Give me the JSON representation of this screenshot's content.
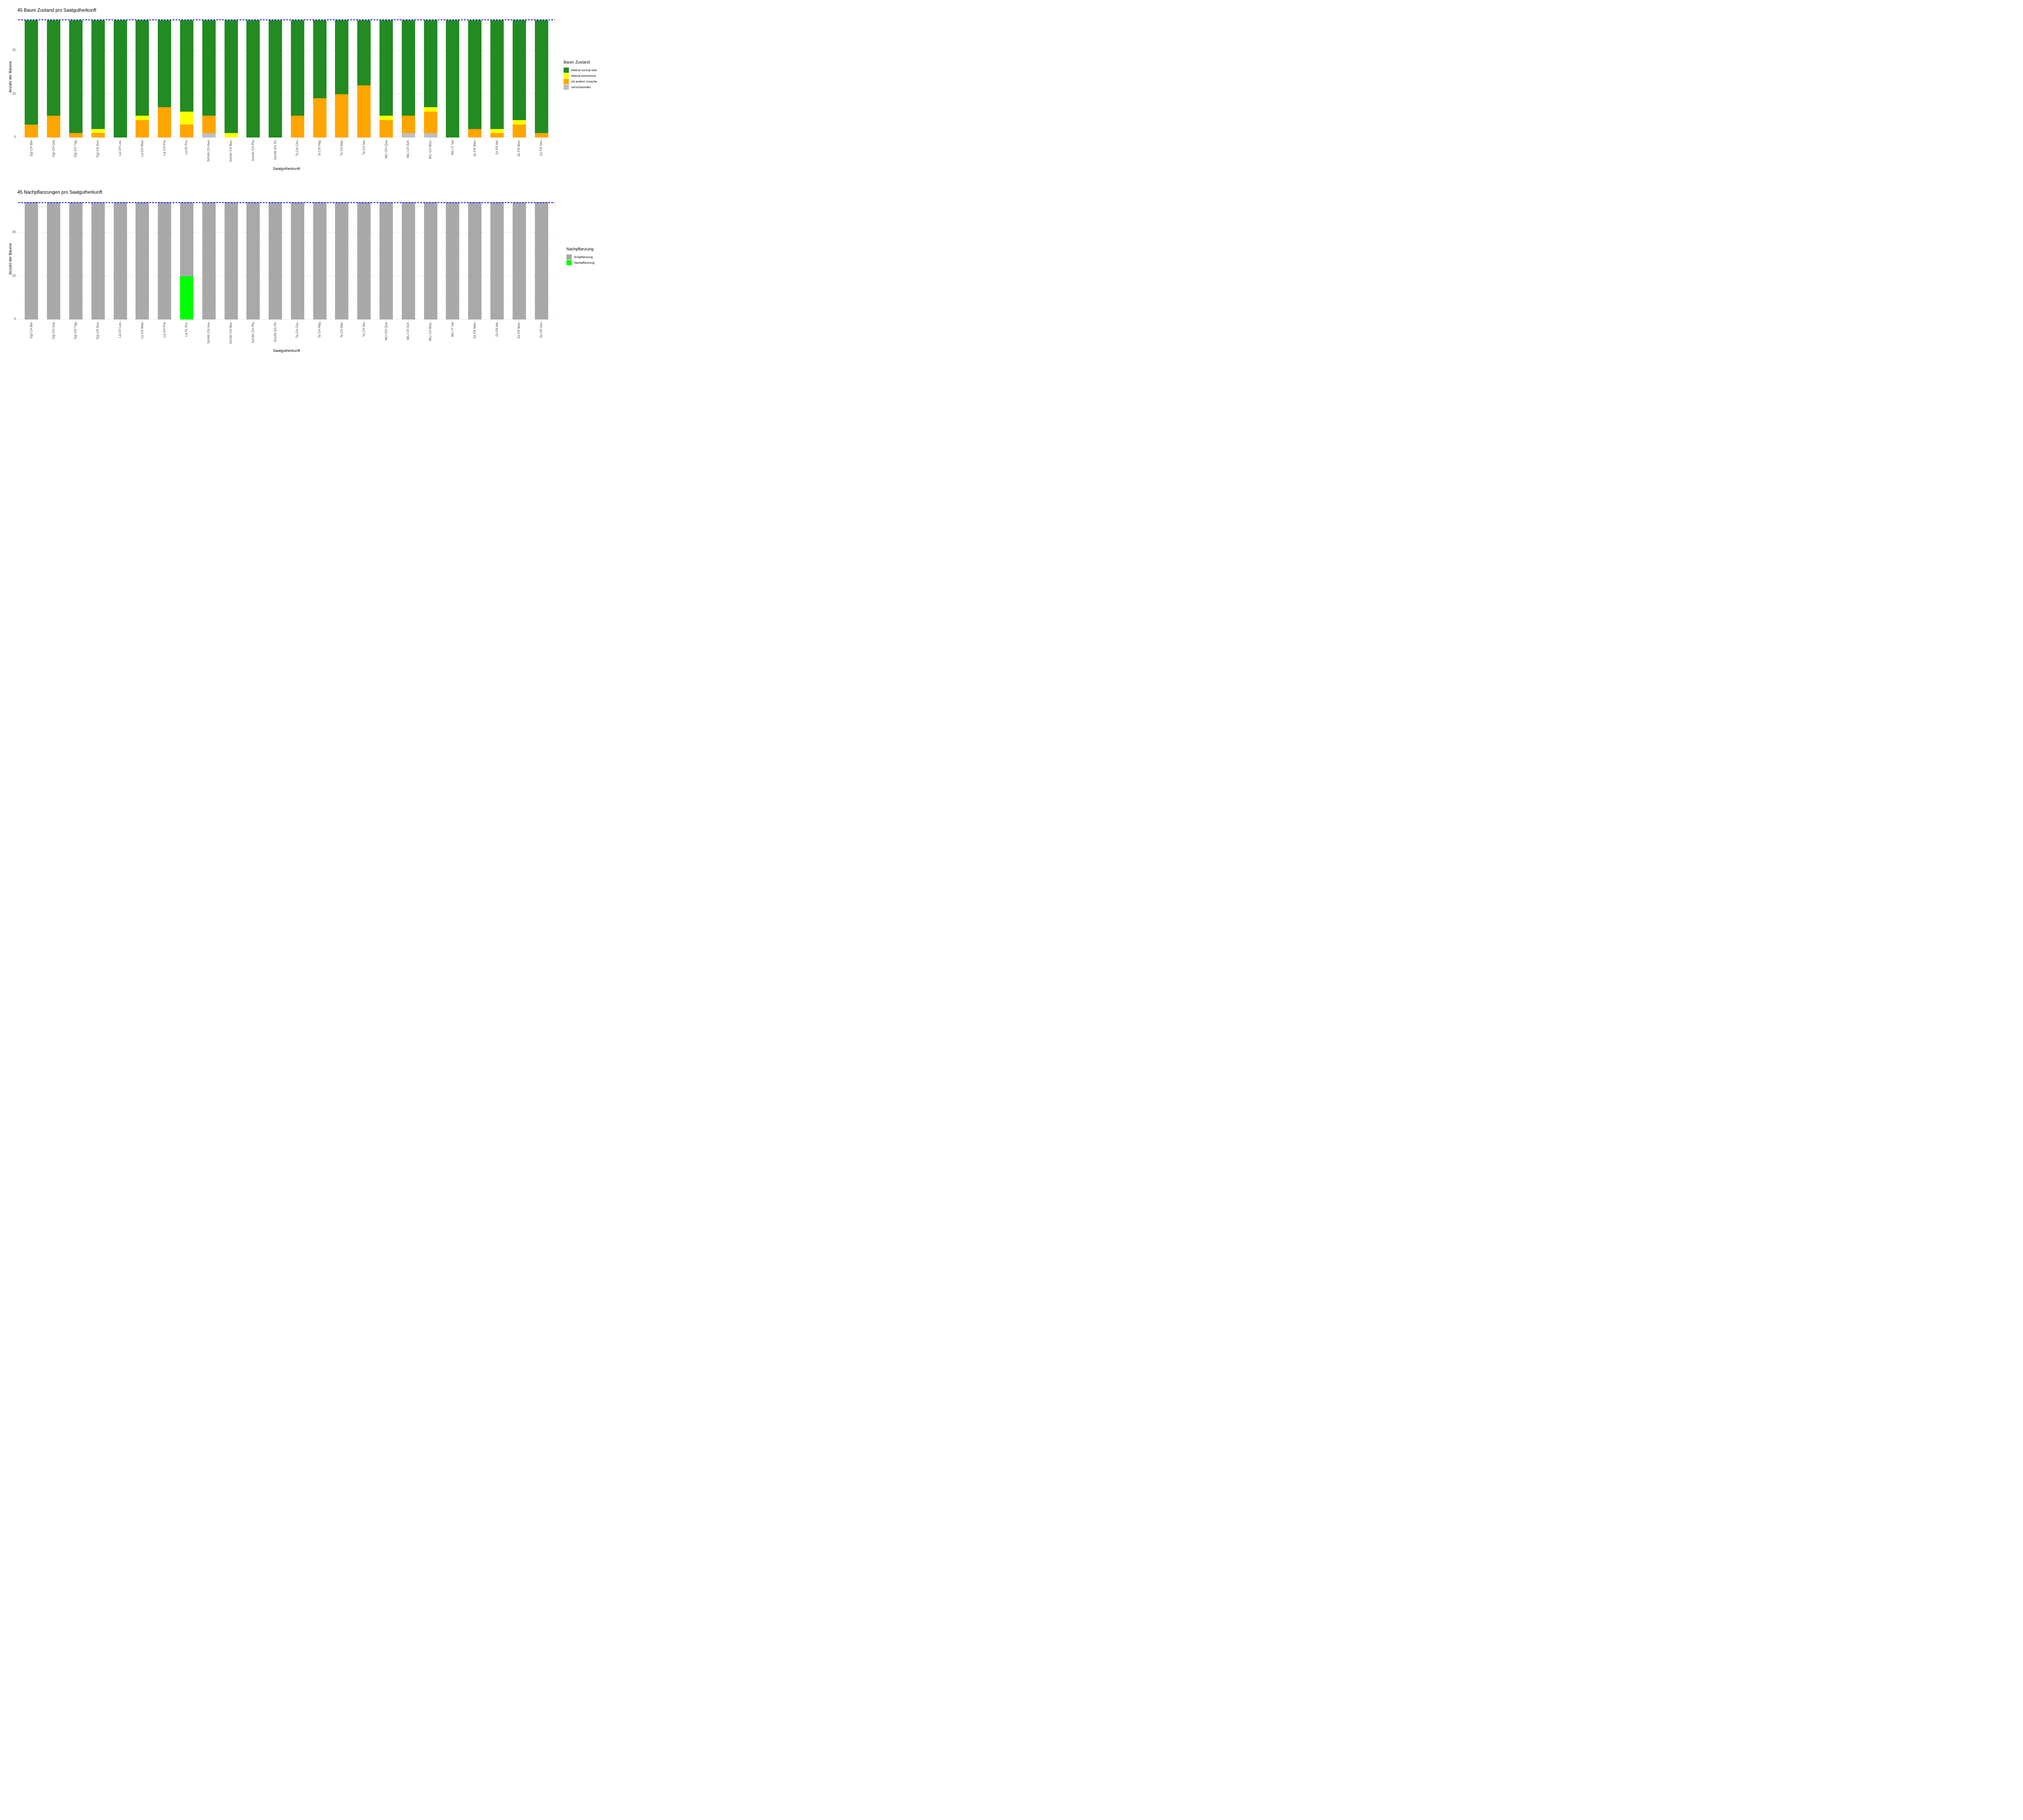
{
  "figure": {
    "background": "#FFFFFF"
  },
  "chart_data": [
    {
      "type": "stacked-bar",
      "title": "45 Baum Zustand pro Saatgutherkunft",
      "xlabel": "Saatgutherkunft",
      "ylabel": "Anzahl der Bäume",
      "ylim": [
        0,
        28
      ],
      "yticks": [
        0,
        10,
        20
      ],
      "yticks_minor": [
        5,
        15,
        25
      ],
      "grid": true,
      "bar_total": 27,
      "reference_line": {
        "value": 27,
        "color": "#0000FF",
        "style": "dashed"
      },
      "categories": [
        "Dgl CH Bie",
        "Dgl CH Grä",
        "Dgl CH Täg",
        "Dgl US Sno",
        "Lä CH Leu",
        "Lä CH Mad",
        "Lä CH Pra",
        "Lä PL Pru",
        "SchAh CH Ave",
        "SchAh CH Bev",
        "SchAh CH Pla",
        "SchAh ES Pir",
        "Ta CH Chu",
        "Ta CH Häg",
        "Ta CH Mar",
        "Ta CH Sie",
        "WLi CH Qua",
        "WLi CH Sch",
        "WLi CH Wün",
        "WLi IT Val",
        "Ze FR Mén",
        "Ze FR Mir",
        "Ze FR Mon",
        "Ze FR Ven"
      ],
      "series": [
        {
          "name": "verschwunden",
          "color": "#BEBEBE",
          "values": [
            0,
            0,
            0,
            0,
            0,
            0,
            0,
            0,
            1,
            0,
            0,
            0,
            0,
            0,
            0,
            0,
            0,
            1,
            1,
            0,
            0,
            0,
            0,
            0
          ]
        },
        {
          "name": "tot andere Ursache",
          "color": "#FFA500",
          "values": [
            3,
            5,
            1,
            1,
            0,
            4,
            7,
            3,
            4,
            0,
            0,
            0,
            5,
            9,
            10,
            12,
            4,
            4,
            5,
            0,
            2,
            1,
            3,
            1
          ]
        },
        {
          "name": "lebend kümmernd",
          "color": "#FFFF00",
          "values": [
            0,
            0,
            0,
            1,
            0,
            1,
            0,
            3,
            0,
            1,
            0,
            0,
            0,
            0,
            0,
            0,
            1,
            0,
            1,
            0,
            0,
            1,
            1,
            0
          ]
        },
        {
          "name": "lebend normal vital",
          "color": "#228B22",
          "values": [
            24,
            22,
            26,
            25,
            27,
            22,
            20,
            21,
            22,
            26,
            27,
            27,
            22,
            18,
            17,
            15,
            22,
            22,
            20,
            27,
            25,
            25,
            23,
            26
          ]
        }
      ],
      "legend": {
        "title": "Baum Zustand",
        "position": "right",
        "items": [
          {
            "label": "lebend normal vital",
            "color": "#228B22"
          },
          {
            "label": "lebend kümmernd",
            "color": "#FFFF00"
          },
          {
            "label": "tot andere Ursache",
            "color": "#FFA500"
          },
          {
            "label": "verschwunden",
            "color": "#BEBEBE"
          }
        ]
      }
    },
    {
      "type": "stacked-bar",
      "title": "45 Nachpflanzungen pro Saatgutherkunft",
      "xlabel": "Saatgutherkunft",
      "ylabel": "Anzahl der Bäume",
      "ylim": [
        0,
        28
      ],
      "yticks": [
        0,
        10,
        20
      ],
      "yticks_minor": [
        5,
        15,
        25
      ],
      "grid": true,
      "bar_total": 27,
      "reference_line": {
        "value": 27,
        "color": "#0000FF",
        "style": "dashed"
      },
      "categories": [
        "Dgl CH Bie",
        "Dgl CH Grä",
        "Dgl CH Täg",
        "Dgl US Sno",
        "Lä CH Leu",
        "Lä CH Mad",
        "Lä CH Pra",
        "Lä PL Pru",
        "SchAh CH Ave",
        "SchAh CH Bev",
        "SchAh CH Pla",
        "SchAh ES Pir",
        "Ta CH Chu",
        "Ta CH Häg",
        "Ta CH Mar",
        "Ta CH Sie",
        "WLi CH Qua",
        "WLi CH Sch",
        "WLi CH Wün",
        "WLi IT Val",
        "Ze FR Mén",
        "Ze FR Mir",
        "Ze FR Mon",
        "Ze FR Ven"
      ],
      "series": [
        {
          "name": "Nachpflanzung",
          "color": "#00FF00",
          "values": [
            0,
            0,
            0,
            0,
            0,
            0,
            0,
            10,
            0,
            0,
            0,
            0,
            0,
            0,
            0,
            0,
            0,
            0,
            0,
            0,
            0,
            0,
            0,
            0
          ]
        },
        {
          "name": "Erstpflanzung",
          "color": "#A9A9A9",
          "values": [
            27,
            27,
            27,
            27,
            27,
            27,
            27,
            17,
            27,
            27,
            27,
            27,
            27,
            27,
            27,
            27,
            27,
            27,
            27,
            27,
            27,
            27,
            27,
            27
          ]
        }
      ],
      "legend": {
        "title": "Nachpflanzung",
        "position": "right",
        "items": [
          {
            "label": "Erstpflanzung",
            "color": "#A9A9A9"
          },
          {
            "label": "Nachpflanzung",
            "color": "#00FF00"
          }
        ]
      }
    }
  ]
}
